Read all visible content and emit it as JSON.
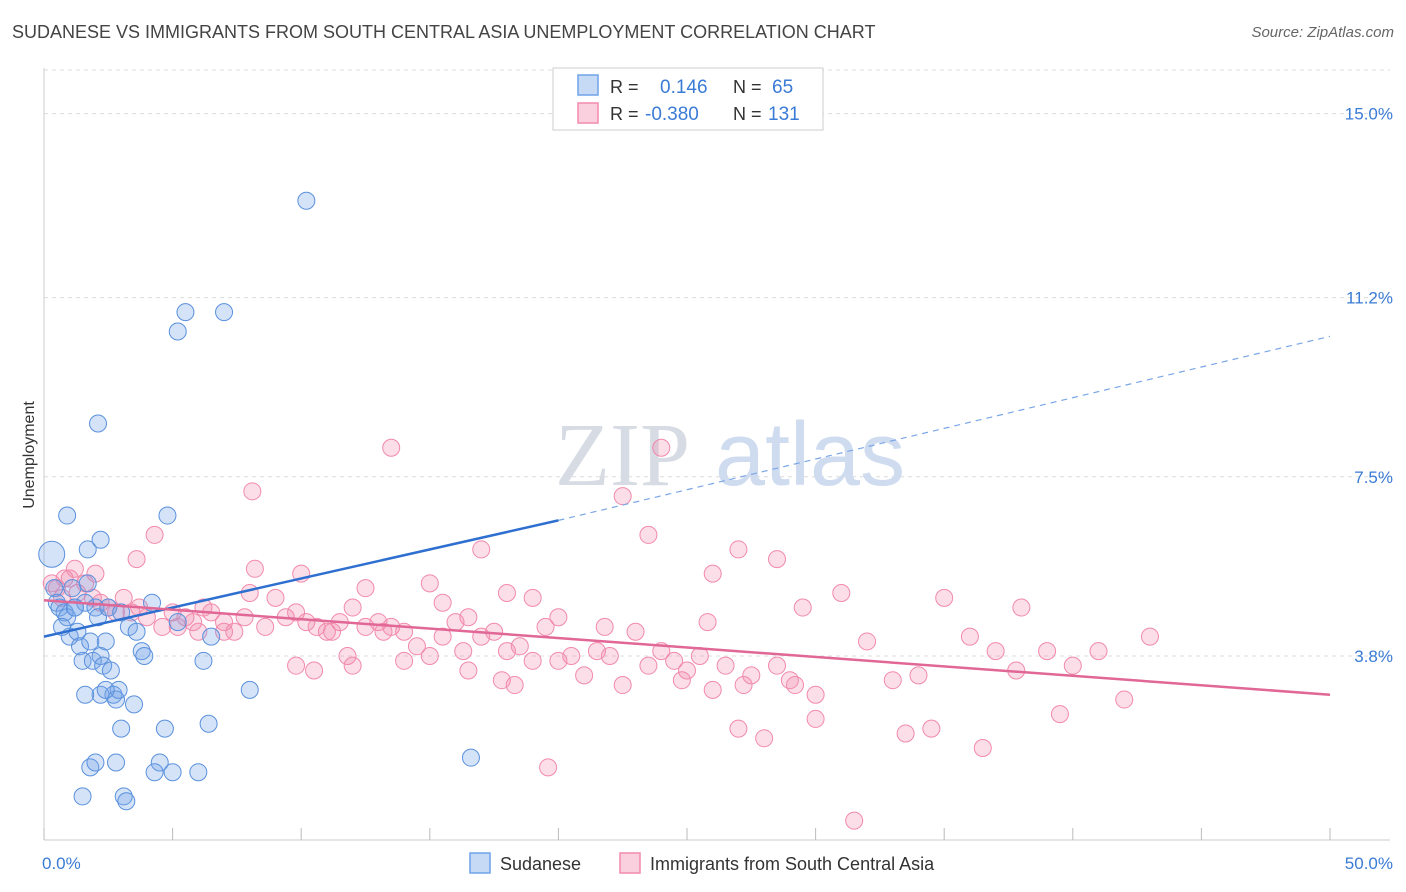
{
  "header": {
    "title": "SUDANESE VS IMMIGRANTS FROM SOUTH CENTRAL ASIA UNEMPLOYMENT CORRELATION CHART",
    "source": "Source: ZipAtlas.com"
  },
  "watermark": {
    "zip": "ZIP",
    "atlas": "atlas"
  },
  "legend_box": {
    "rows": [
      {
        "r_label": "R =",
        "r_value": "0.146",
        "n_label": "N =",
        "n_value": "65"
      },
      {
        "r_label": "R =",
        "r_value": "-0.380",
        "n_label": "N =",
        "n_value": "131"
      }
    ]
  },
  "chart_data": {
    "type": "scatter",
    "xlabel": "",
    "ylabel": "Unemployment",
    "xlim": [
      0,
      50
    ],
    "ylim": [
      0,
      15.9
    ],
    "x_tick_labels": [
      "0.0%",
      "50.0%"
    ],
    "y_ticks": [
      {
        "value": 3.8,
        "label": "3.8%"
      },
      {
        "value": 7.5,
        "label": "7.5%"
      },
      {
        "value": 11.2,
        "label": "11.2%"
      },
      {
        "value": 15.0,
        "label": "15.0%"
      }
    ],
    "colors": {
      "blue": "#6fa3e8",
      "pink": "#f28aab",
      "blue_line": "#2e6fcf",
      "pink_line": "#e06796"
    },
    "series": [
      {
        "name": "Sudanese",
        "color": "#6fa3e8",
        "trend": {
          "x0": 0,
          "y0": 4.2,
          "x1": 20,
          "y1": 6.6,
          "x_dash_end": 50,
          "y_dash_end": 10.4
        },
        "points": [
          [
            0.3,
            5.9
          ],
          [
            0.4,
            5.2
          ],
          [
            0.5,
            4.9
          ],
          [
            0.6,
            4.8
          ],
          [
            0.8,
            4.7
          ],
          [
            0.9,
            4.6
          ],
          [
            1.0,
            4.2
          ],
          [
            1.1,
            5.2
          ],
          [
            1.2,
            4.8
          ],
          [
            1.3,
            4.3
          ],
          [
            1.4,
            4.0
          ],
          [
            1.5,
            3.7
          ],
          [
            1.6,
            4.9
          ],
          [
            1.7,
            5.3
          ],
          [
            1.8,
            4.1
          ],
          [
            1.9,
            3.7
          ],
          [
            2.0,
            4.8
          ],
          [
            2.1,
            4.6
          ],
          [
            2.2,
            3.8
          ],
          [
            2.3,
            3.6
          ],
          [
            2.4,
            4.1
          ],
          [
            2.5,
            4.8
          ],
          [
            2.6,
            3.5
          ],
          [
            2.7,
            3.0
          ],
          [
            2.8,
            2.9
          ],
          [
            2.9,
            3.1
          ],
          [
            3.0,
            4.7
          ],
          [
            2.2,
            3.0
          ],
          [
            0.9,
            6.7
          ],
          [
            1.7,
            6.0
          ],
          [
            2.2,
            6.2
          ],
          [
            3.3,
            4.4
          ],
          [
            3.5,
            2.8
          ],
          [
            3.6,
            4.3
          ],
          [
            3.8,
            3.9
          ],
          [
            3.9,
            3.8
          ],
          [
            4.2,
            4.9
          ],
          [
            4.5,
            1.6
          ],
          [
            4.7,
            2.3
          ],
          [
            5.0,
            1.4
          ],
          [
            5.2,
            4.5
          ],
          [
            6.0,
            1.4
          ],
          [
            6.2,
            3.7
          ],
          [
            2.1,
            8.6
          ],
          [
            4.8,
            6.7
          ],
          [
            5.2,
            10.5
          ],
          [
            5.5,
            10.9
          ],
          [
            7.0,
            10.9
          ],
          [
            6.4,
            2.4
          ],
          [
            6.5,
            4.2
          ],
          [
            8.0,
            3.1
          ],
          [
            10.2,
            13.2
          ],
          [
            16.6,
            1.7
          ],
          [
            1.8,
            1.5
          ],
          [
            3.1,
            0.9
          ],
          [
            3.2,
            0.8
          ],
          [
            2.0,
            1.6
          ],
          [
            4.3,
            1.4
          ],
          [
            2.8,
            1.6
          ],
          [
            1.5,
            0.9
          ],
          [
            1.2,
            4.8
          ],
          [
            1.6,
            3.0
          ],
          [
            2.4,
            3.1
          ],
          [
            3.0,
            2.3
          ],
          [
            0.7,
            4.4
          ]
        ]
      },
      {
        "name": "Immigrants from South Central Asia",
        "color": "#f28aab",
        "trend": {
          "x0": 0,
          "y0": 4.95,
          "x1": 50,
          "y1": 3.0
        },
        "points": [
          [
            0.3,
            5.3
          ],
          [
            0.5,
            5.2
          ],
          [
            0.7,
            5.0
          ],
          [
            1.0,
            5.4
          ],
          [
            1.3,
            5.1
          ],
          [
            1.6,
            5.3
          ],
          [
            1.9,
            5.0
          ],
          [
            2.2,
            4.9
          ],
          [
            2.5,
            4.8
          ],
          [
            2.8,
            4.7
          ],
          [
            3.1,
            5.0
          ],
          [
            3.4,
            4.7
          ],
          [
            3.7,
            4.8
          ],
          [
            4.0,
            4.6
          ],
          [
            4.3,
            6.3
          ],
          [
            4.6,
            4.4
          ],
          [
            5.0,
            4.7
          ],
          [
            5.5,
            4.6
          ],
          [
            5.8,
            4.5
          ],
          [
            6.2,
            4.8
          ],
          [
            6.5,
            4.7
          ],
          [
            7.0,
            4.5
          ],
          [
            7.4,
            4.3
          ],
          [
            7.8,
            4.6
          ],
          [
            8.2,
            5.6
          ],
          [
            8.6,
            4.4
          ],
          [
            9.0,
            5.0
          ],
          [
            9.4,
            4.6
          ],
          [
            9.8,
            4.7
          ],
          [
            10.2,
            4.5
          ],
          [
            10.6,
            4.4
          ],
          [
            11.0,
            4.3
          ],
          [
            11.5,
            4.5
          ],
          [
            12.0,
            4.8
          ],
          [
            12.5,
            4.4
          ],
          [
            13.0,
            4.5
          ],
          [
            13.5,
            4.4
          ],
          [
            14.0,
            4.3
          ],
          [
            14.5,
            4.0
          ],
          [
            15.0,
            5.3
          ],
          [
            15.5,
            4.9
          ],
          [
            16.0,
            4.5
          ],
          [
            16.5,
            4.6
          ],
          [
            17.0,
            4.2
          ],
          [
            17.5,
            4.3
          ],
          [
            18.0,
            3.9
          ],
          [
            18.5,
            4.0
          ],
          [
            19.0,
            3.7
          ],
          [
            19.5,
            4.4
          ],
          [
            20.0,
            3.7
          ],
          [
            20.5,
            3.8
          ],
          [
            21.0,
            3.4
          ],
          [
            21.5,
            3.9
          ],
          [
            22.0,
            3.8
          ],
          [
            22.5,
            3.2
          ],
          [
            23.0,
            4.3
          ],
          [
            23.5,
            3.6
          ],
          [
            24.0,
            3.9
          ],
          [
            24.5,
            3.7
          ],
          [
            25.0,
            3.5
          ],
          [
            25.5,
            3.8
          ],
          [
            26.0,
            3.1
          ],
          [
            26.5,
            3.6
          ],
          [
            27.0,
            2.3
          ],
          [
            27.5,
            3.4
          ],
          [
            28.0,
            2.1
          ],
          [
            28.5,
            3.6
          ],
          [
            29.0,
            3.3
          ],
          [
            29.5,
            4.8
          ],
          [
            30.0,
            3.0
          ],
          [
            31.0,
            5.1
          ],
          [
            32.0,
            4.1
          ],
          [
            33.0,
            3.3
          ],
          [
            34.0,
            3.4
          ],
          [
            35.0,
            5.0
          ],
          [
            36.0,
            4.2
          ],
          [
            37.0,
            3.9
          ],
          [
            38.0,
            4.8
          ],
          [
            39.0,
            3.9
          ],
          [
            40.0,
            3.6
          ],
          [
            41.0,
            3.9
          ],
          [
            42.0,
            2.9
          ],
          [
            43.0,
            4.2
          ],
          [
            8.1,
            7.2
          ],
          [
            13.5,
            8.1
          ],
          [
            17.0,
            6.0
          ],
          [
            22.5,
            7.1
          ],
          [
            23.5,
            6.3
          ],
          [
            24.0,
            8.1
          ],
          [
            26.0,
            5.5
          ],
          [
            27.0,
            6.0
          ],
          [
            28.5,
            5.8
          ],
          [
            10.0,
            5.5
          ],
          [
            12.5,
            5.2
          ],
          [
            18.0,
            5.1
          ],
          [
            19.0,
            5.0
          ],
          [
            8.0,
            5.1
          ],
          [
            20.0,
            4.6
          ],
          [
            15.5,
            4.2
          ],
          [
            10.5,
            3.5
          ],
          [
            12.0,
            3.6
          ],
          [
            14.0,
            3.7
          ],
          [
            16.5,
            3.5
          ],
          [
            9.8,
            3.6
          ],
          [
            11.8,
            3.8
          ],
          [
            15.0,
            3.8
          ],
          [
            18.3,
            3.2
          ],
          [
            19.6,
            1.5
          ],
          [
            21.8,
            4.4
          ],
          [
            25.8,
            4.5
          ],
          [
            30.0,
            2.5
          ],
          [
            31.5,
            0.4
          ],
          [
            33.5,
            2.2
          ],
          [
            34.5,
            2.3
          ],
          [
            36.5,
            1.9
          ],
          [
            37.8,
            3.5
          ],
          [
            39.5,
            2.6
          ],
          [
            6.0,
            4.3
          ],
          [
            3.6,
            5.8
          ],
          [
            2.0,
            5.5
          ],
          [
            1.2,
            5.6
          ],
          [
            0.8,
            5.4
          ],
          [
            5.2,
            4.4
          ],
          [
            7.0,
            4.3
          ],
          [
            11.2,
            4.3
          ],
          [
            13.2,
            4.3
          ],
          [
            16.3,
            3.9
          ],
          [
            17.8,
            3.3
          ],
          [
            24.8,
            3.3
          ],
          [
            27.2,
            3.2
          ],
          [
            29.2,
            3.2
          ]
        ]
      }
    ],
    "legend_placement": "bottom-center"
  },
  "bottom_legend": {
    "items": [
      {
        "label": "Sudanese",
        "color": "#6fa3e8"
      },
      {
        "label": "Immigrants from South Central Asia",
        "color": "#f28aab"
      }
    ]
  }
}
